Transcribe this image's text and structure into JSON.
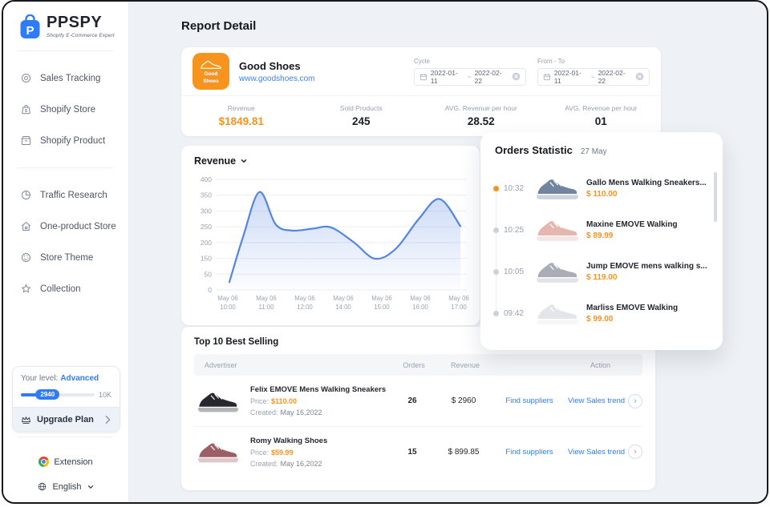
{
  "app": {
    "name": "PPSPY",
    "tagline": "Shopify E-Commerce Expert"
  },
  "sidebar": {
    "items": [
      {
        "label": "Sales Tracking"
      },
      {
        "label": "Shopify Store"
      },
      {
        "label": "Shopify Product"
      },
      {
        "label": "Traffic Research"
      },
      {
        "label": "One-product Store"
      },
      {
        "label": "Store Theme"
      },
      {
        "label": "Collection"
      }
    ],
    "level": {
      "label": "Your level:",
      "value": "Advanced",
      "badge": "2940",
      "max": "10K",
      "pct": 30
    },
    "upgrade": "Upgrade Plan",
    "extension": "Extension",
    "language": "English"
  },
  "page": {
    "title": "Report Detail"
  },
  "store": {
    "name": "Good Shoes",
    "url": "www.goodshoes.com",
    "badge1": "Good",
    "badge2": "Shoes"
  },
  "filters": {
    "cycle": {
      "label": "Cycle",
      "start": "2022-01-11",
      "sep": "~",
      "end": "2022-02-22"
    },
    "from_to": {
      "label": "From - To",
      "start": "2022-01-11",
      "sep": "~",
      "end": "2022-02-22"
    }
  },
  "stats": [
    {
      "label": "Revenue",
      "value": "$1849.81"
    },
    {
      "label": "Sold Products",
      "value": "245"
    },
    {
      "label": "AVG. Revenue per hour",
      "value": "28.52"
    },
    {
      "label": "AVG. Revenue per hour",
      "value": "01"
    }
  ],
  "chart_data": {
    "type": "area",
    "title": "Revenue",
    "line_color": "#5585e2",
    "fill_color": "#5585e2",
    "grid": true,
    "ylim": [
      0,
      400
    ],
    "yticks": [
      "400",
      "350",
      "300",
      "250",
      "200",
      "150",
      "50",
      "0"
    ],
    "ytick_values_bottom_up": [
      0,
      50,
      150,
      200,
      250,
      300,
      350,
      400
    ],
    "xticks": [
      {
        "date": "May 06",
        "time": "10:00"
      },
      {
        "date": "May 06",
        "time": "11:00"
      },
      {
        "date": "May 06",
        "time": "12:00"
      },
      {
        "date": "May 06",
        "time": "14:00"
      },
      {
        "date": "May 06",
        "time": "15:00"
      },
      {
        "date": "May 06",
        "time": "16:00"
      },
      {
        "date": "May 06",
        "time": "17:00"
      }
    ],
    "series": [
      {
        "name": "Revenue",
        "points": [
          {
            "t": 0.0,
            "v": 25
          },
          {
            "t": 0.06,
            "v": 220
          },
          {
            "t": 0.13,
            "v": 360
          },
          {
            "t": 0.2,
            "v": 258
          },
          {
            "t": 0.27,
            "v": 238
          },
          {
            "t": 0.36,
            "v": 244
          },
          {
            "t": 0.44,
            "v": 248
          },
          {
            "t": 0.54,
            "v": 200
          },
          {
            "t": 0.63,
            "v": 148
          },
          {
            "t": 0.72,
            "v": 180
          },
          {
            "t": 0.82,
            "v": 275
          },
          {
            "t": 0.91,
            "v": 338
          },
          {
            "t": 1.0,
            "v": 252
          }
        ]
      }
    ]
  },
  "orders": {
    "title": "Orders Statistic",
    "date": "27 May",
    "items": [
      {
        "time": "10:32",
        "name": "Gallo Mens Walking Sneakers...",
        "price": "$ 110.00",
        "dot": "#f7941e",
        "shoe": "#72849f"
      },
      {
        "time": "10:25",
        "name": "Maxine EMOVE Walking",
        "price": "$ 89.99",
        "dot": "#cdd2d9",
        "shoe": "#e6b5af"
      },
      {
        "time": "10:05",
        "name": "Jump EMOVE mens walking s...",
        "price": "$ 119.00",
        "dot": "#cdd2d9",
        "shoe": "#a9aeb6"
      },
      {
        "time": "09:42",
        "name": "Marliss EMOVE Walking",
        "price": "$ 99.00",
        "dot": "#cdd2d9",
        "shoe": "#e3e5e8"
      }
    ]
  },
  "top10": {
    "title": "Top 10 Best Selling",
    "columns": [
      "Advertiser",
      "Orders",
      "Revenue",
      "Action"
    ],
    "rows": [
      {
        "name": "Felix EMOVE Mens Walking Sneakers",
        "price_label": "Price:",
        "price": "$110.00",
        "created_label": "Created:",
        "created": "May 16,2022",
        "orders": "26",
        "revenue": "$ 2960",
        "find": "Find suppliers",
        "trend": "View Sales trend",
        "shoe": "#26282d"
      },
      {
        "name": "Romy Walking Shoes",
        "price_label": "Price:",
        "price": "$59.99",
        "created_label": "Created:",
        "created": "May 16,2022",
        "orders": "15",
        "revenue": "$ 899.85",
        "find": "Find suppliers",
        "trend": "View Sales trend",
        "shoe": "#9d5f66"
      }
    ]
  },
  "colors": {
    "accent_orange": "#f7941e",
    "accent_blue": "#2f7cf6",
    "chart_line": "#5585e2"
  }
}
